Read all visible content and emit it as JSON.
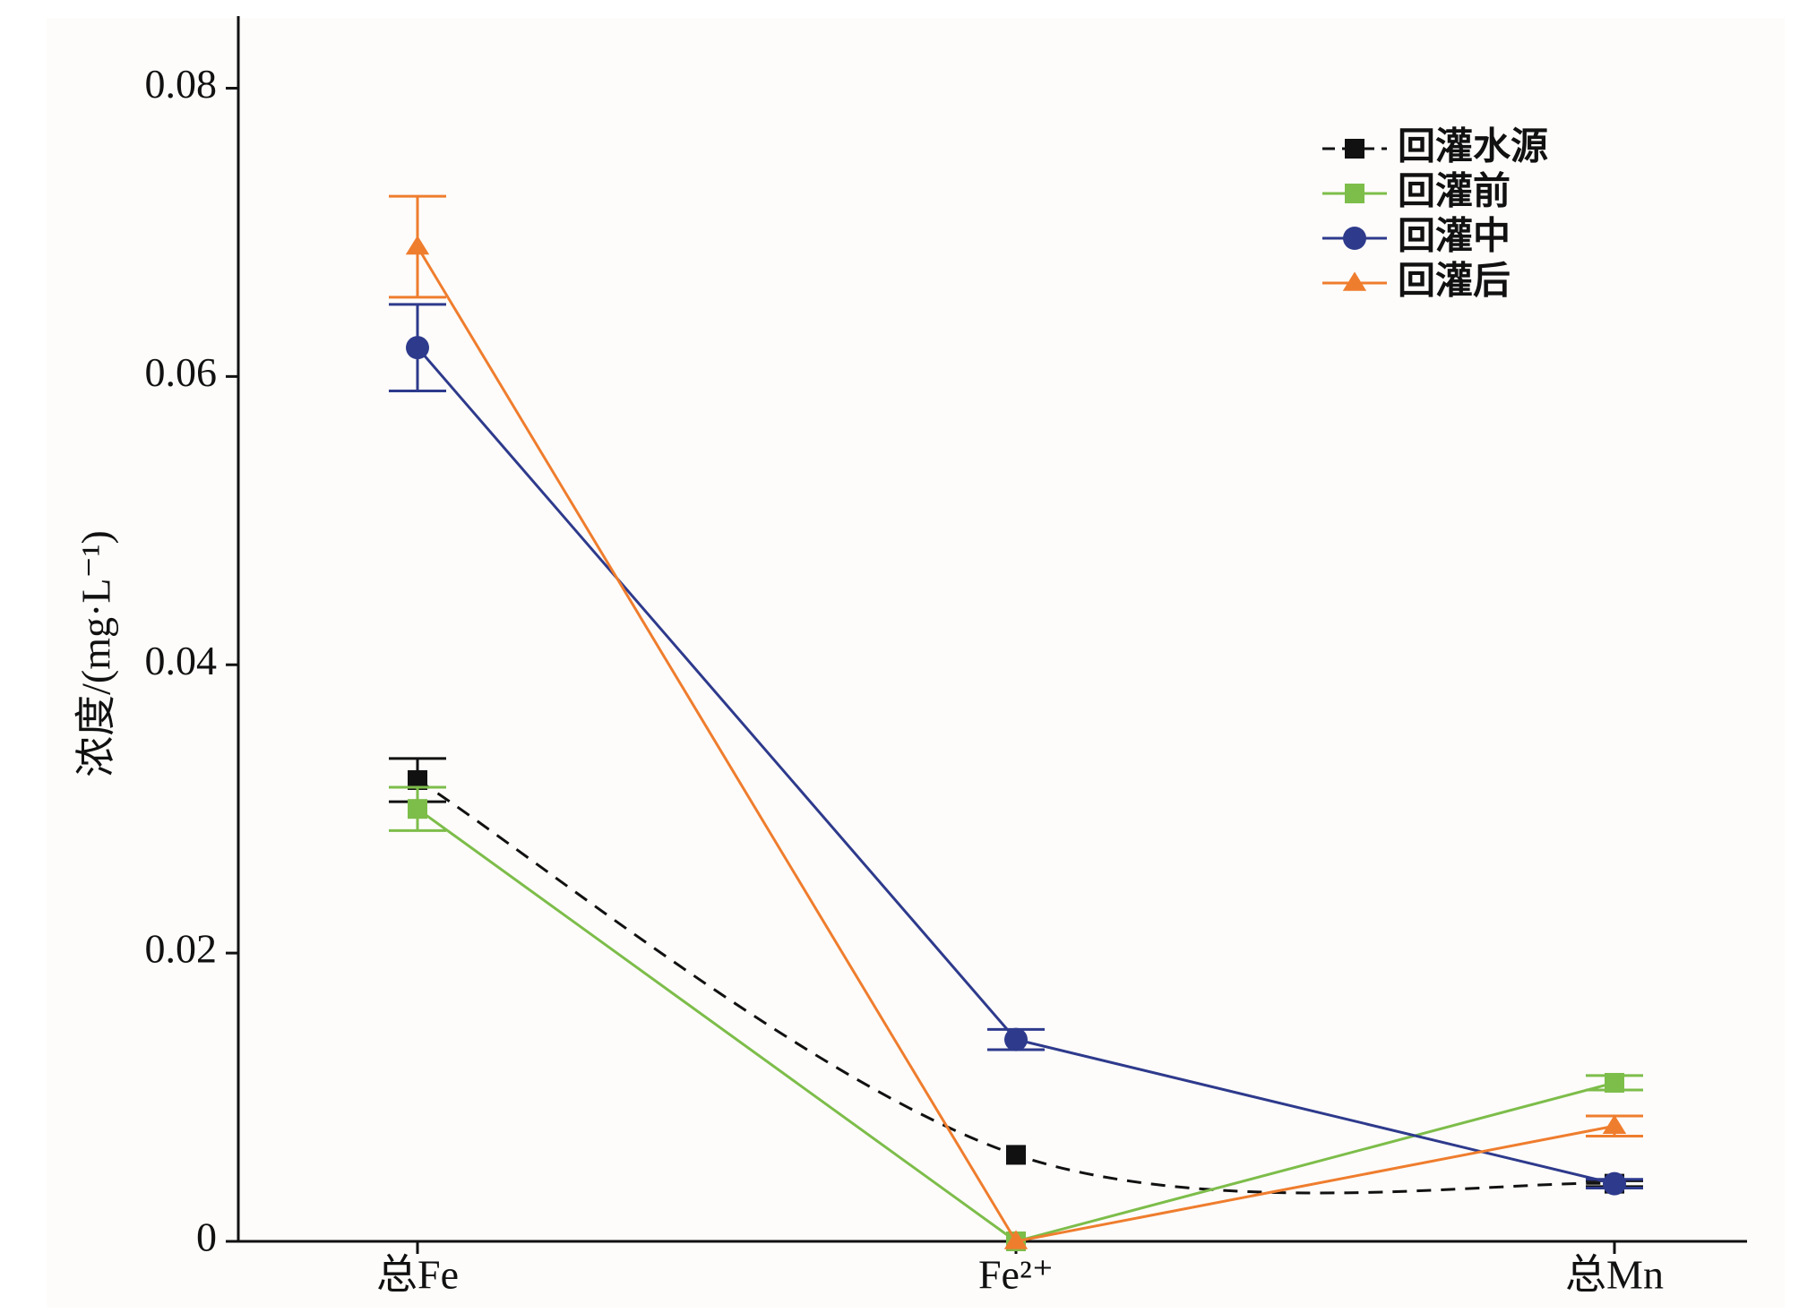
{
  "chart_data": {
    "type": "line",
    "ylabel": "浓度/(mg·L⁻¹)",
    "categories": [
      "总Fe",
      "Fe²⁺",
      "总Mn"
    ],
    "ylim": [
      0,
      0.085
    ],
    "yticks": [
      0,
      0.02,
      0.04,
      0.06,
      0.08
    ],
    "series": [
      {
        "name": "回灌水源",
        "color": "#111111",
        "marker": "square",
        "dashed": true,
        "smooth": true,
        "values": [
          0.032,
          0.006,
          0.004
        ],
        "errors": [
          0.0015,
          0,
          0.0002
        ]
      },
      {
        "name": "回灌前",
        "color": "#7dbd4a",
        "marker": "square",
        "values": [
          0.03,
          0,
          0.011
        ],
        "errors": [
          0.0015,
          0,
          0.0005
        ]
      },
      {
        "name": "回灌中",
        "color": "#2e3a8c",
        "marker": "circle",
        "values": [
          0.062,
          0.014,
          0.004
        ],
        "errors": [
          0.003,
          0.0007,
          0.0003
        ]
      },
      {
        "name": "回灌后",
        "color": "#ef7d2e",
        "marker": "triangle",
        "values": [
          0.069,
          0,
          0.008
        ],
        "errors": [
          0.0035,
          0,
          0.0007
        ]
      }
    ]
  }
}
